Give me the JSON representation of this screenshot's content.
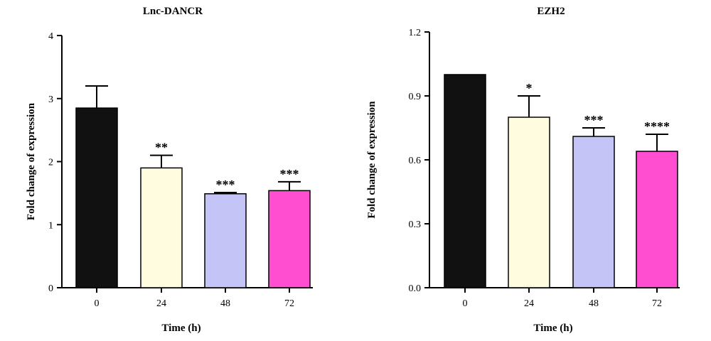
{
  "chart_data": [
    {
      "type": "bar",
      "title": "Lnc-DANCR",
      "xlabel": "Time (h)",
      "ylabel": "Fold change of expression",
      "categories": [
        "0",
        "24",
        "48",
        "72"
      ],
      "values": [
        2.85,
        1.9,
        1.49,
        1.54
      ],
      "errors": [
        0.35,
        0.2,
        0.02,
        0.14
      ],
      "significance": [
        "",
        "**",
        "***",
        "***"
      ],
      "colors": [
        "#111111",
        "#fffce0",
        "#c4c4f6",
        "#ff4fd0"
      ],
      "ylim": [
        0,
        4
      ],
      "yticks": [
        0,
        1,
        2,
        3,
        4
      ],
      "ytick_labels": [
        "0",
        "1",
        "2",
        "3",
        "4"
      ]
    },
    {
      "type": "bar",
      "title": "EZH2",
      "xlabel": "Time (h)",
      "ylabel": "Fold change of expression",
      "categories": [
        "0",
        "24",
        "48",
        "72"
      ],
      "values": [
        1.0,
        0.8,
        0.71,
        0.64
      ],
      "errors": [
        0,
        0.1,
        0.04,
        0.08
      ],
      "significance": [
        "",
        "*",
        "***",
        "****"
      ],
      "colors": [
        "#111111",
        "#fffce0",
        "#c4c4f6",
        "#ff4fd0"
      ],
      "ylim": [
        0,
        1.2
      ],
      "yticks": [
        0,
        0.3,
        0.6,
        0.9,
        1.2
      ],
      "ytick_labels": [
        "0.0",
        "0.3",
        "0.6",
        "0.9",
        "1.2"
      ]
    }
  ]
}
